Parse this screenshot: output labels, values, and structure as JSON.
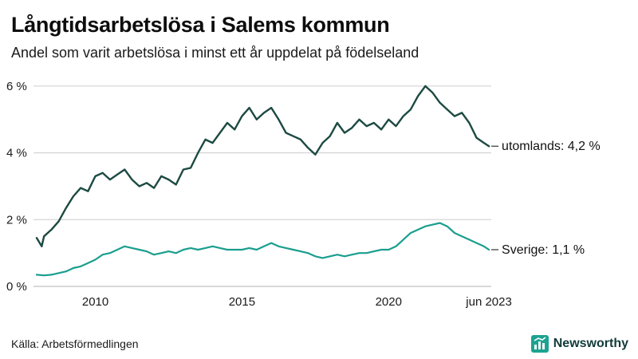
{
  "title": "Långtidsarbetslösa i Salems kommun",
  "subtitle": "Andel som varit arbetslösa i minst ett år uppdelat på födelseland",
  "source": "Källa: Arbetsförmedlingen",
  "brand": {
    "name": "Newsworthy",
    "icon": "bar-chart-logo-icon",
    "icon_color": "#1ba390",
    "text_color": "#123a3a"
  },
  "chart_data": {
    "type": "line",
    "title": "Långtidsarbetslösa i Salems kommun",
    "xlabel": "",
    "ylabel": "",
    "x_range": [
      2008,
      2023.5
    ],
    "ylim": [
      0,
      6.5
    ],
    "grid": "horizontal",
    "grid_color": "#cccccc",
    "axis_text_color": "#1a1a1a",
    "legend_position": "end-of-line",
    "yticks": [
      {
        "value": 0,
        "label": "0 %"
      },
      {
        "value": 2,
        "label": "2 %"
      },
      {
        "value": 4,
        "label": "4 %"
      },
      {
        "value": 6,
        "label": "6 %"
      }
    ],
    "xticks": [
      {
        "value": 2010,
        "label": "2010"
      },
      {
        "value": 2015,
        "label": "2015"
      },
      {
        "value": 2020,
        "label": "2020"
      },
      {
        "value": 2023.42,
        "label": "jun 2023"
      }
    ],
    "series": [
      {
        "name": "utomlands",
        "end_label": "utomlands: 4,2 %",
        "last_value_label": "4,2 %",
        "color": "#1c4a42",
        "stroke_width": 2.4,
        "x": [
          2008.0,
          2008.17,
          2008.25,
          2008.5,
          2008.75,
          2009.0,
          2009.25,
          2009.5,
          2009.75,
          2010.0,
          2010.25,
          2010.5,
          2010.75,
          2011.0,
          2011.25,
          2011.5,
          2011.75,
          2012.0,
          2012.25,
          2012.5,
          2012.75,
          2013.0,
          2013.25,
          2013.5,
          2013.75,
          2014.0,
          2014.25,
          2014.5,
          2014.75,
          2015.0,
          2015.25,
          2015.5,
          2015.75,
          2016.0,
          2016.25,
          2016.5,
          2016.75,
          2017.0,
          2017.25,
          2017.5,
          2017.75,
          2018.0,
          2018.25,
          2018.5,
          2018.75,
          2019.0,
          2019.25,
          2019.5,
          2019.75,
          2020.0,
          2020.25,
          2020.5,
          2020.75,
          2021.0,
          2021.25,
          2021.5,
          2021.75,
          2022.0,
          2022.25,
          2022.5,
          2022.75,
          2023.0,
          2023.25,
          2023.42
        ],
        "y": [
          1.45,
          1.2,
          1.5,
          1.7,
          1.95,
          2.35,
          2.7,
          2.95,
          2.85,
          3.3,
          3.4,
          3.2,
          3.35,
          3.5,
          3.2,
          3.0,
          3.1,
          2.95,
          3.3,
          3.2,
          3.05,
          3.5,
          3.55,
          4.0,
          4.4,
          4.3,
          4.6,
          4.9,
          4.7,
          5.1,
          5.35,
          5.0,
          5.2,
          5.35,
          5.0,
          4.6,
          4.5,
          4.4,
          4.15,
          3.95,
          4.3,
          4.5,
          4.9,
          4.6,
          4.75,
          5.0,
          4.8,
          4.9,
          4.7,
          5.0,
          4.8,
          5.1,
          5.3,
          5.7,
          6.0,
          5.8,
          5.5,
          5.3,
          5.1,
          5.2,
          4.9,
          4.45,
          4.3,
          4.2
        ]
      },
      {
        "name": "Sverige",
        "end_label": "Sverige: 1,1 %",
        "last_value_label": "1,1 %",
        "color": "#1a9e8e",
        "stroke_width": 2.2,
        "x": [
          2008.0,
          2008.25,
          2008.5,
          2008.75,
          2009.0,
          2009.25,
          2009.5,
          2009.75,
          2010.0,
          2010.25,
          2010.5,
          2010.75,
          2011.0,
          2011.25,
          2011.5,
          2011.75,
          2012.0,
          2012.25,
          2012.5,
          2012.75,
          2013.0,
          2013.25,
          2013.5,
          2013.75,
          2014.0,
          2014.25,
          2014.5,
          2014.75,
          2015.0,
          2015.25,
          2015.5,
          2015.75,
          2016.0,
          2016.25,
          2016.5,
          2016.75,
          2017.0,
          2017.25,
          2017.5,
          2017.75,
          2018.0,
          2018.25,
          2018.5,
          2018.75,
          2019.0,
          2019.25,
          2019.5,
          2019.75,
          2020.0,
          2020.25,
          2020.5,
          2020.75,
          2021.0,
          2021.25,
          2021.5,
          2021.75,
          2022.0,
          2022.25,
          2022.5,
          2022.75,
          2023.0,
          2023.25,
          2023.42
        ],
        "y": [
          0.35,
          0.33,
          0.35,
          0.4,
          0.45,
          0.55,
          0.6,
          0.7,
          0.8,
          0.95,
          1.0,
          1.1,
          1.2,
          1.15,
          1.1,
          1.05,
          0.95,
          1.0,
          1.05,
          1.0,
          1.1,
          1.15,
          1.1,
          1.15,
          1.2,
          1.15,
          1.1,
          1.1,
          1.1,
          1.15,
          1.1,
          1.2,
          1.3,
          1.2,
          1.15,
          1.1,
          1.05,
          1.0,
          0.9,
          0.85,
          0.9,
          0.95,
          0.9,
          0.95,
          1.0,
          1.0,
          1.05,
          1.1,
          1.1,
          1.2,
          1.4,
          1.6,
          1.7,
          1.8,
          1.85,
          1.9,
          1.8,
          1.6,
          1.5,
          1.4,
          1.3,
          1.2,
          1.1
        ]
      }
    ]
  }
}
